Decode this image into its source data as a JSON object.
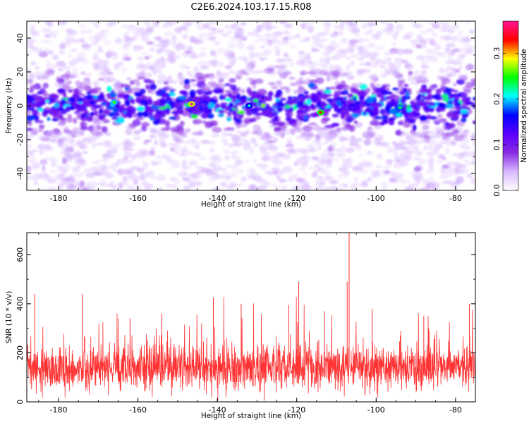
{
  "figure_title": "C2E6.2024.103.17.15.R08",
  "chart_data": [
    {
      "type": "heatmap",
      "xlabel": "Height of straight line (km)",
      "ylabel": "Frequency (Hz)",
      "xlim": [
        -188,
        -75
      ],
      "ylim": [
        -50,
        50
      ],
      "xticks": [
        -180,
        -160,
        -140,
        -120,
        -100,
        -80
      ],
      "yticks": [
        -40,
        -20,
        0,
        20,
        40
      ],
      "band_center_hz": 0,
      "band_halfwidth_hz": 10,
      "colorbar": {
        "label": "Normalized spectral amplitude",
        "range": [
          0.0,
          0.37
        ],
        "ticks": [
          0.0,
          0.1,
          0.2,
          0.3
        ],
        "colormap": [
          "#ffffff",
          "#d7b8ff",
          "#8a2be2",
          "#5a00ff",
          "#0000ff",
          "#00ffff",
          "#00ff00",
          "#ffff00",
          "#ff0000",
          "#ff1493"
        ]
      },
      "hotspots": [
        {
          "x": -146.5,
          "y": 1,
          "value": 0.37
        },
        {
          "x": -114,
          "y": -4,
          "value": 0.33
        },
        {
          "x": -166,
          "y": 2,
          "value": 0.26
        },
        {
          "x": -94,
          "y": -1,
          "value": 0.24
        },
        {
          "x": -132,
          "y": 0,
          "value": 0.22
        }
      ]
    },
    {
      "type": "line",
      "xlabel": "Height of straight line (km)",
      "ylabel": "SNR (10 * v/v)",
      "xlim": [
        -188,
        -75
      ],
      "ylim": [
        0,
        690
      ],
      "xticks": [
        -180,
        -160,
        -140,
        -120,
        -100,
        -80
      ],
      "yticks": [
        0,
        200,
        400,
        600
      ],
      "series_color": "#ff3333",
      "baseline_mean": 140,
      "baseline_spread": 60,
      "peaks": [
        {
          "x": -106.8,
          "y": 690
        },
        {
          "x": -107.3,
          "y": 490
        },
        {
          "x": -119.5,
          "y": 490
        },
        {
          "x": -174,
          "y": 440
        },
        {
          "x": -76.5,
          "y": 400
        },
        {
          "x": -186,
          "y": 440
        },
        {
          "x": -141,
          "y": 425
        },
        {
          "x": -134,
          "y": 400
        },
        {
          "x": -122,
          "y": 395
        },
        {
          "x": -101,
          "y": 380
        },
        {
          "x": -113,
          "y": 370
        },
        {
          "x": -154,
          "y": 360
        },
        {
          "x": -88,
          "y": 350
        },
        {
          "x": -162,
          "y": 340
        }
      ],
      "dips": [
        {
          "x": -106.6,
          "y": 20
        },
        {
          "x": -125.5,
          "y": 15
        }
      ]
    }
  ]
}
